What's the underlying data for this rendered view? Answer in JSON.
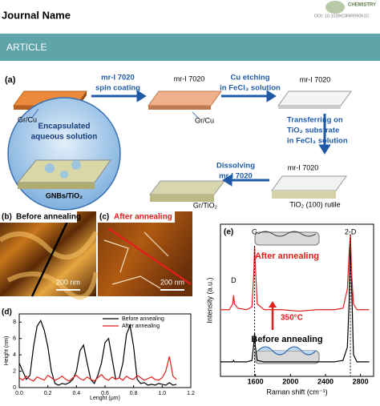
{
  "header": {
    "journal": "Journal Name",
    "logo": "CHEMISTRY",
    "doi": "DOI: 10.1039/C8NR09061C",
    "section": "ARTICLE"
  },
  "figure": {
    "panel_a": {
      "label": "(a)",
      "steps": [
        [
          "mr-I 7020",
          "spin coating"
        ],
        [
          "Cu etching",
          "in FeCl₃ solution"
        ],
        [
          "Transferring on",
          "TiO₂ substrate",
          "in FeCl₃ solution"
        ],
        [
          "Dissolving",
          "mr-I 7020"
        ]
      ],
      "labels": [
        "mr-I 7020",
        "mr-I 7020",
        "Gr/Cu",
        "Gr/Cu",
        "mr-I 7020",
        "Gr/TiO₂",
        "TiO₂ (100) rutile",
        "GNBs/TiO₂"
      ],
      "inset": [
        "Encapsulated",
        "aqueous solution"
      ]
    },
    "panel_b": {
      "label": "(b)",
      "title": "Before annealing",
      "scale": "200 nm"
    },
    "panel_c": {
      "label": "(c)",
      "title": "After annealing",
      "scale": "200 nm"
    }
  },
  "chart_data": [
    {
      "type": "line",
      "label": "(d)",
      "xlabel": "Lenght (μm)",
      "ylabel": "Height (nm)",
      "x": [
        0,
        0.025,
        0.05,
        0.075,
        0.1,
        0.125,
        0.15,
        0.175,
        0.2,
        0.225,
        0.25,
        0.275,
        0.3,
        0.325,
        0.35,
        0.375,
        0.4,
        0.425,
        0.45,
        0.475,
        0.5,
        0.525,
        0.55,
        0.575,
        0.6,
        0.625,
        0.65,
        0.675,
        0.7,
        0.725,
        0.75,
        0.775,
        0.8,
        0.825,
        0.85,
        0.875,
        0.9,
        0.925,
        0.95,
        0.975,
        1,
        1.025,
        1.05,
        1.075,
        1.1
      ],
      "series": [
        {
          "name": "Before annealing",
          "color": "#000000",
          "values": [
            3,
            2,
            1,
            1.5,
            5,
            7.5,
            8.2,
            7,
            5,
            2,
            0.5,
            0.3,
            0.5,
            0.4,
            0.6,
            1,
            2,
            4.5,
            5.2,
            3,
            1,
            0.5,
            1.5,
            3,
            5.5,
            6,
            3.5,
            1,
            1.2,
            3,
            6.5,
            7.6,
            5,
            1,
            0.5,
            0.6,
            0.3,
            0.4,
            0.3,
            0.5,
            0.4,
            0.3,
            0.6,
            0.3,
            0.4
          ]
        },
        {
          "name": "After annealing",
          "color": "#e0201b",
          "values": [
            1.2,
            0.9,
            1.4,
            1,
            0.8,
            1.3,
            1.1,
            0.9,
            1.5,
            1.2,
            0.9,
            1.1,
            1.4,
            1,
            0.8,
            1.2,
            1.5,
            1.1,
            0.9,
            1.3,
            1,
            0.8,
            1.2,
            1.6,
            1.1,
            0.9,
            1.3,
            1,
            1.2,
            0.9,
            1.4,
            1.1,
            1,
            1.5,
            1.2,
            0.9,
            1.1,
            1.3,
            1,
            0.9,
            1.2,
            2,
            3.8,
            1.4,
            1
          ]
        }
      ],
      "xlim": [
        0,
        1.2
      ],
      "ylim": [
        0,
        9
      ],
      "xticks": [
        {
          "value": 0,
          "label": "0.0"
        },
        0.2,
        0.4,
        0.6,
        0.8,
        {
          "value": 1,
          "label": "1.0"
        },
        1.2
      ],
      "yticks": [
        0,
        2,
        4,
        6,
        8
      ],
      "legend": "upper right"
    },
    {
      "type": "line",
      "label": "(e)",
      "xlabel": "Raman shift (cm⁻¹)",
      "ylabel": "Intensity (a.u.)",
      "x": [
        1200,
        1300,
        1340,
        1350,
        1360,
        1400,
        1500,
        1560,
        1580,
        1590,
        1600,
        1620,
        1700,
        1900,
        2100,
        2300,
        2500,
        2600,
        2650,
        2670,
        2685,
        2700,
        2720,
        2760,
        2850,
        2900
      ],
      "series": [
        {
          "name": "Before annealing",
          "color": "#000000",
          "values": [
            1,
            1,
            1,
            1.1,
            1,
            1,
            1,
            1.1,
            2.2,
            3,
            2,
            1.1,
            1,
            1,
            1,
            1,
            1,
            1.1,
            2,
            5,
            9.5,
            6,
            1.5,
            1,
            1,
            1
          ]
        },
        {
          "name": "After annealing",
          "color": "#e0201b",
          "values": [
            4.6,
            4.6,
            5,
            5.6,
            5,
            4.7,
            4.6,
            4.8,
            7,
            9,
            7.5,
            5,
            4.6,
            4.6,
            4.5,
            4.6,
            4.6,
            4.7,
            6,
            8.5,
            9.8,
            7,
            5,
            4.6,
            4.6,
            4.6
          ]
        }
      ],
      "xlim": [
        1200,
        2950
      ],
      "ylim": [
        0,
        10.5
      ],
      "xticks": [
        1600,
        2000,
        2400,
        2800
      ],
      "annotations": [
        "D",
        "G",
        "2-D",
        "After annealing",
        "350°C",
        "Before annealing"
      ]
    }
  ]
}
